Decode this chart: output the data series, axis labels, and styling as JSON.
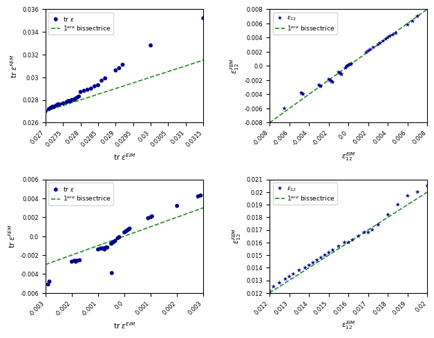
{
  "subplot1": {
    "xlabel": "tr $\\varepsilon^{EIM}$",
    "ylabel": "tr $\\varepsilon^{FEM}$",
    "xlim": [
      0.027,
      0.0315
    ],
    "ylim": [
      0.026,
      0.036
    ],
    "xticks": [
      0.027,
      0.0275,
      0.028,
      0.0285,
      0.029,
      0.0295,
      0.03,
      0.0305,
      0.031,
      0.0315
    ],
    "yticks": [
      0.026,
      0.028,
      0.03,
      0.032,
      0.034,
      0.036
    ],
    "scatter_x": [
      0.027,
      0.0271,
      0.02715,
      0.0272,
      0.02725,
      0.0273,
      0.02735,
      0.0274,
      0.0275,
      0.0276,
      0.02765,
      0.0277,
      0.02775,
      0.0278,
      0.02785,
      0.0279,
      0.02795,
      0.028,
      0.0281,
      0.0282,
      0.0283,
      0.0284,
      0.0285,
      0.0286,
      0.0287,
      0.029,
      0.0291,
      0.0292,
      0.03,
      0.0315
    ],
    "scatter_y": [
      0.027,
      0.0272,
      0.0273,
      0.0274,
      0.0274,
      0.0275,
      0.0276,
      0.0276,
      0.0277,
      0.0278,
      0.0279,
      0.0279,
      0.028,
      0.028,
      0.0281,
      0.0282,
      0.0283,
      0.0287,
      0.0288,
      0.0289,
      0.029,
      0.0292,
      0.0293,
      0.0297,
      0.0299,
      0.0306,
      0.0308,
      0.0311,
      0.0328,
      0.0352
    ],
    "line_x": [
      0.027,
      0.0315
    ],
    "line_y": [
      0.027,
      0.0315
    ],
    "legend1": "tr $\\varepsilon$",
    "legend2": "1$^{ere}$ bissectrice",
    "scatter_color": "#00008B",
    "line_color": "#228B22"
  },
  "subplot2": {
    "xlabel": "$\\varepsilon_{12}^{EIM}$",
    "ylabel": "$\\varepsilon_{12}^{FEM}$",
    "xlim": [
      -0.008,
      0.008
    ],
    "ylim": [
      -0.008,
      0.008
    ],
    "xticks": [
      -0.008,
      -0.006,
      -0.004,
      -0.002,
      0.0,
      0.002,
      0.004,
      0.006,
      0.008
    ],
    "yticks": [
      -0.008,
      -0.006,
      -0.004,
      -0.002,
      0.0,
      0.002,
      0.004,
      0.006,
      0.008
    ],
    "scatter_x": [
      -0.0065,
      -0.0048,
      -0.0047,
      -0.0046,
      -0.003,
      -0.0029,
      -0.0028,
      -0.002,
      -0.0019,
      -0.0018,
      -0.0017,
      -0.0016,
      -0.001,
      -0.0009,
      -0.0008,
      -0.0007,
      -0.0003,
      -0.0002,
      -0.0001,
      0.0,
      0.0001,
      0.0002,
      0.0003,
      0.0018,
      0.002,
      0.0022,
      0.0025,
      0.003,
      0.0032,
      0.0035,
      0.0038,
      0.004,
      0.0042,
      0.0045,
      0.0048,
      0.006,
      0.0065,
      0.007
    ],
    "scatter_y": [
      -0.006,
      -0.0038,
      -0.0039,
      -0.004,
      -0.0027,
      -0.0028,
      -0.0029,
      -0.0019,
      -0.002,
      -0.0021,
      -0.0022,
      -0.0023,
      -0.0009,
      -0.001,
      -0.0011,
      -0.0012,
      -0.0003,
      -0.0001,
      0.0,
      0.0001,
      0.0002,
      0.0002,
      0.0003,
      0.0019,
      0.0021,
      0.0023,
      0.0026,
      0.003,
      0.0032,
      0.0035,
      0.0038,
      0.004,
      0.0042,
      0.0044,
      0.0046,
      0.0058,
      0.0063,
      0.007
    ],
    "line_x": [
      -0.008,
      0.008
    ],
    "line_y": [
      -0.008,
      0.008
    ],
    "legend1": "$\\varepsilon_{12}$",
    "legend2": "1$^{ere}$ bissectrice",
    "scatter_color": "#00008B",
    "line_color": "#228B22"
  },
  "subplot3": {
    "xlabel": "tr $\\varepsilon^{EIM}$",
    "ylabel": "tr $\\varepsilon^{FEM}$",
    "xlim": [
      -0.003,
      0.003
    ],
    "ylim": [
      -0.006,
      0.006
    ],
    "xticks": [
      -0.003,
      -0.002,
      -0.001,
      0.0,
      0.001,
      0.002,
      0.003
    ],
    "yticks": [
      -0.006,
      -0.004,
      -0.002,
      0.0,
      0.002,
      0.004,
      0.006
    ],
    "scatter_x": [
      -0.0029,
      -0.002,
      -0.0019,
      -0.00185,
      -0.0018,
      -0.0017,
      -0.001,
      -0.0009,
      -0.00085,
      -0.0008,
      -0.00075,
      -0.0007,
      -0.00065,
      -0.0005,
      -0.00045,
      -0.0004,
      -0.00035,
      -0.00025,
      -0.0002,
      0.0,
      5e-05,
      0.0001,
      0.00015,
      0.0002,
      0.0009,
      0.001,
      0.00105,
      0.002,
      0.0028,
      0.0029
    ],
    "scatter_y": [
      -0.0051,
      -0.0027,
      -0.0026,
      -0.0027,
      -0.0026,
      -0.00255,
      -0.0014,
      -0.0013,
      -0.0013,
      -0.0013,
      -0.0014,
      -0.0012,
      -0.0012,
      -0.0008,
      -0.0007,
      -0.0006,
      -0.0005,
      -0.0002,
      -0.0001,
      0.0004,
      0.0005,
      0.0006,
      0.0007,
      0.0008,
      0.0019,
      0.002,
      0.0021,
      0.0032,
      0.0042,
      0.0043
    ],
    "line_x": [
      -0.003,
      0.003
    ],
    "line_y": [
      -0.003,
      0.003
    ],
    "extra_points_x": [
      -0.00285,
      -0.00048
    ],
    "extra_points_y": [
      -0.0048,
      -0.0039
    ],
    "legend1": "tr $\\varepsilon$",
    "legend2": "1$^{ere}$ bissectrice",
    "scatter_color": "#00008B",
    "line_color": "#228B22"
  },
  "subplot4": {
    "xlabel": "$\\varepsilon_{12}^{EIM}$",
    "ylabel": "$\\varepsilon_{12}^{FEM}$",
    "xlim": [
      0.012,
      0.02
    ],
    "ylim": [
      0.012,
      0.021
    ],
    "xticks": [
      0.012,
      0.013,
      0.014,
      0.015,
      0.016,
      0.017,
      0.018,
      0.019,
      0.02
    ],
    "yticks": [
      0.012,
      0.013,
      0.014,
      0.015,
      0.016,
      0.017,
      0.018,
      0.019,
      0.02,
      0.021
    ],
    "scatter_x": [
      0.012,
      0.0122,
      0.0125,
      0.0128,
      0.013,
      0.0132,
      0.0135,
      0.0138,
      0.014,
      0.0142,
      0.0144,
      0.0146,
      0.0148,
      0.015,
      0.0152,
      0.0155,
      0.0158,
      0.016,
      0.0162,
      0.0165,
      0.0168,
      0.017,
      0.0172,
      0.0175,
      0.018,
      0.0185,
      0.019,
      0.0195,
      0.02
    ],
    "scatter_y": [
      0.0122,
      0.0125,
      0.0128,
      0.0131,
      0.0133,
      0.0135,
      0.0138,
      0.014,
      0.0142,
      0.0144,
      0.0146,
      0.0148,
      0.015,
      0.0152,
      0.0154,
      0.0157,
      0.016,
      0.016,
      0.0162,
      0.0165,
      0.0168,
      0.0168,
      0.017,
      0.0174,
      0.0182,
      0.019,
      0.0197,
      0.02,
      0.0205
    ],
    "line_x": [
      0.012,
      0.021
    ],
    "line_y": [
      0.012,
      0.021
    ],
    "legend1": "$\\varepsilon_{12}$",
    "legend2": "1$^{ere}$ bissectrice",
    "scatter_color": "#00008B",
    "line_color": "#228B22"
  }
}
